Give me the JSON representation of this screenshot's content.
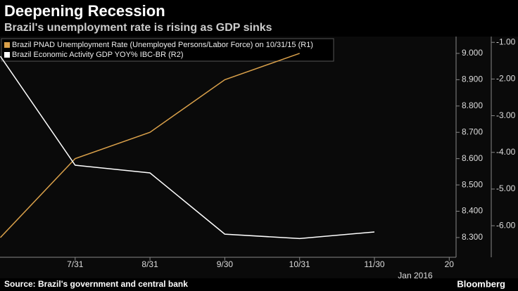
{
  "chart_data": {
    "type": "line",
    "title": "Deepening Recession",
    "subtitle": "Brazil's unemployment rate is rising as GDP sinks",
    "source": "Source: Brazil's government and central bank",
    "brand": "Bloomberg",
    "x_annotation": "Jan 2016",
    "categories": [
      null,
      "7/31",
      "8/31",
      "9/30",
      "10/31",
      "11/30",
      "20"
    ],
    "series": [
      {
        "name": "Brazil PNAD Unemployment Rate (Unemployed Persons/Labor Force)  on 10/31/15 (R1)",
        "color": "#d9a04a",
        "axis": "y",
        "values": [
          8.3,
          8.6,
          8.7,
          8.9,
          9.0,
          null,
          null
        ]
      },
      {
        "name": "Brazil Economic Activity GDP YOY% IBC-BR  (R2)",
        "color": "#ffffff",
        "axis": "y2",
        "values": [
          -1.38,
          -4.35,
          -4.56,
          -6.23,
          -6.35,
          -6.17,
          null
        ]
      }
    ],
    "ylim": [
      8.225,
      9.056
    ],
    "yticks": [
      {
        "value": 8.3,
        "label": "8.300"
      },
      {
        "value": 8.4,
        "label": "8.400"
      },
      {
        "value": 8.5,
        "label": "8.500"
      },
      {
        "value": 8.6,
        "label": "8.600"
      },
      {
        "value": 8.7,
        "label": "8.700"
      },
      {
        "value": 8.8,
        "label": "8.800"
      },
      {
        "value": 8.9,
        "label": "8.900"
      },
      {
        "value": 9.0,
        "label": "9.000"
      }
    ],
    "y2lim": [
      -6.86,
      -0.9
    ],
    "y2ticks": [
      {
        "value": -6,
        "label": "-6.00"
      },
      {
        "value": -5,
        "label": "-5.00"
      },
      {
        "value": -4,
        "label": "-4.00"
      },
      {
        "value": -3,
        "label": "-3.00"
      },
      {
        "value": -2,
        "label": "-2.00"
      },
      {
        "value": -1,
        "label": "-1.00"
      }
    ],
    "grid": false,
    "legend": "top-left"
  }
}
